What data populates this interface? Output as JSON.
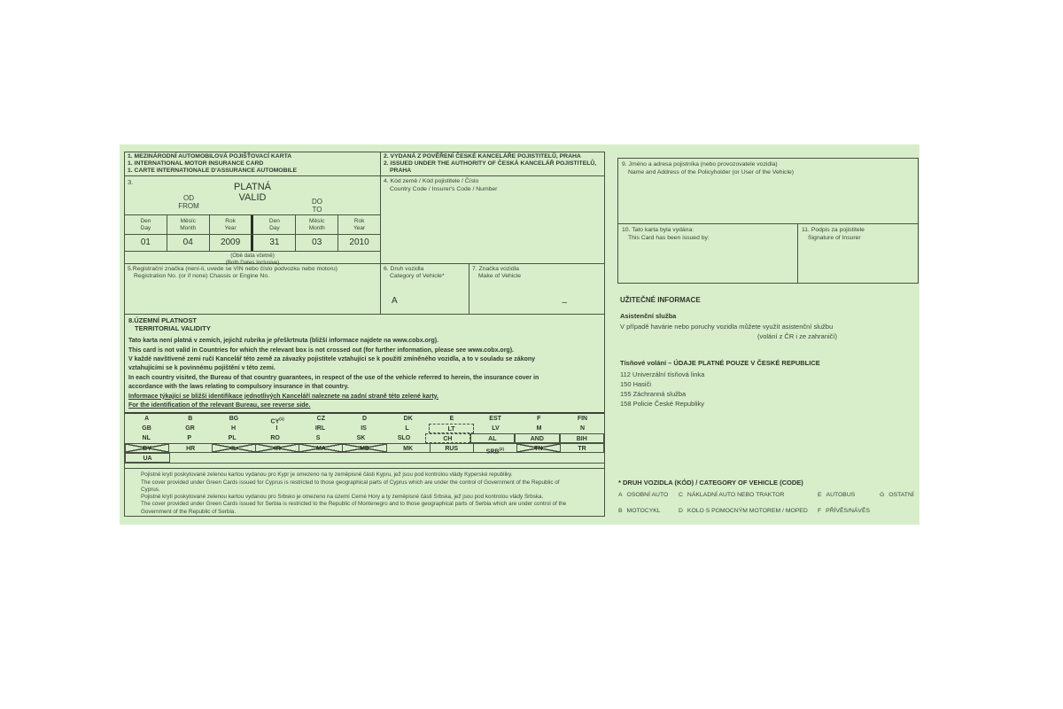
{
  "card": {
    "field1": {
      "lines": [
        "1. MEZINÁRODNÍ AUTOMOBILOVÁ POJIŠŤOVACÍ KARTA",
        "1. INTERNATIONAL MOTOR INSURANCE CARD",
        "1. CARTE INTERNATIONALE D'ASSURANCE AUTOMOBILE"
      ]
    },
    "field2": {
      "lines": [
        "2. VYDANÁ Z POVĚŘENÍ ČESKÉ KANCELÁŘE POJISTITELŮ, PRAHA",
        "2. ISSUED UNDER THE AUTHORITY OF ČESKÁ KANCELÁŘ POJISTITELŮ,",
        "PRAHA"
      ]
    },
    "validity": {
      "number": "3.",
      "title_cs": "PLATNÁ",
      "title_en": "VALID",
      "from_cs": "OD",
      "from_en": "FROM",
      "to_cs": "DO",
      "to_en": "TO",
      "col_headers": [
        {
          "cs": "Den",
          "en": "Day"
        },
        {
          "cs": "Měsíc",
          "en": "Month"
        },
        {
          "cs": "Rok",
          "en": "Year"
        },
        {
          "cs": "Den",
          "en": "Day"
        },
        {
          "cs": "Měsíc",
          "en": "Month"
        },
        {
          "cs": "Rok",
          "en": "Year"
        }
      ],
      "values": [
        "01",
        "04",
        "2009",
        "31",
        "03",
        "2010"
      ],
      "note_cs": "(Obě data včetně)",
      "note_en": "(Both Dates Inclusive)"
    },
    "field4": {
      "label_cs": "4. Kód země / Kód pojistitele / Číslo",
      "label_en": "Country Code / Insurer's Code / Number",
      "value": ""
    },
    "field5": {
      "label_cs": "5.Registrační značka (není-li, uvede se VIN nebo číslo podvozku nebo motoru)",
      "label_en": "Registration No. (or if none) Chassis or Engine No.",
      "value": ""
    },
    "field6": {
      "label_cs": "6. Druh vozidla",
      "label_en": "Category of Vehicle*",
      "value": "A"
    },
    "field7": {
      "label_cs": "7. Značka vozidla",
      "label_en": "Make of Vehicle",
      "value": "–"
    },
    "section8": {
      "title_cs": "8.ÚZEMNÍ PLATNOST",
      "title_en": "TERRITORIAL VALIDITY",
      "lines": [
        {
          "text": "Tato karta není platná v zemích, jejichž rubrika je přeškrtnuta (bližší informace najdete na www.cobx.org).",
          "underline": false
        },
        {
          "text": "This card is not valid in Countries for which the relevant box is not crossed out (for further information, please see www.cobx.org).",
          "underline": false
        },
        {
          "text": "V každé navštívené zemi ručí Kancelář této země za závazky pojistitele vztahující se k použití zmíněného vozidla, a to v souladu se zákony",
          "underline": false
        },
        {
          "text": "vztahujícími se k povinnému pojištění v této zemi.",
          "underline": false
        },
        {
          "text": "In each country visited, the Bureau of that country guarantees, in respect of the use of the vehicle referred to herein, the insurance cover in",
          "underline": false
        },
        {
          "text": "accordance with the laws relating to compulsory insurance in that country.",
          "underline": false
        },
        {
          "text": "Informace týkající se bližší identifikace jednotlivých Kanceláří naleznete na zadní straně této zelené karty.",
          "underline": true
        },
        {
          "text": "For the identification of the relevant Bureau, see reverse side.",
          "underline": true
        }
      ]
    },
    "countries": {
      "rows": [
        [
          {
            "code": "A"
          },
          {
            "code": "B"
          },
          {
            "code": "BG"
          },
          {
            "code": "CY",
            "sup": "(1)"
          },
          {
            "code": "CZ"
          },
          {
            "code": "D"
          },
          {
            "code": "DK"
          },
          {
            "code": "E"
          },
          {
            "code": "EST"
          },
          {
            "code": "F"
          },
          {
            "code": "FIN"
          }
        ],
        [
          {
            "code": "GB"
          },
          {
            "code": "GR"
          },
          {
            "code": "H"
          },
          {
            "code": "I"
          },
          {
            "code": "IRL"
          },
          {
            "code": "IS"
          },
          {
            "code": "L"
          },
          {
            "code": "LT",
            "border": "dashed"
          },
          {
            "code": "LV"
          },
          {
            "code": "M"
          },
          {
            "code": "N"
          }
        ],
        [
          {
            "code": "NL"
          },
          {
            "code": "P"
          },
          {
            "code": "PL"
          },
          {
            "code": "RO"
          },
          {
            "code": "S"
          },
          {
            "code": "SK"
          },
          {
            "code": "SLO"
          },
          {
            "code": "CH",
            "border": "dashed"
          },
          {
            "code": "AL",
            "border": "solid"
          },
          {
            "code": "AND",
            "border": "solid"
          },
          {
            "code": "BIH",
            "border": "solid"
          }
        ],
        [
          {
            "code": "BY",
            "crossed": true
          },
          {
            "code": "HR"
          },
          {
            "code": "IL",
            "crossed": true
          },
          {
            "code": "IR",
            "crossed": true
          },
          {
            "code": "MA",
            "crossed": true
          },
          {
            "code": "MD",
            "crossed": true
          },
          {
            "code": "MK"
          },
          {
            "code": "RUS"
          },
          {
            "code": "SRB",
            "sup": "(2)"
          },
          {
            "code": "TN",
            "crossed": true
          },
          {
            "code": "TR"
          }
        ],
        [
          {
            "code": "UA",
            "border": "solid"
          },
          {
            "code": ""
          },
          {
            "code": ""
          },
          {
            "code": ""
          },
          {
            "code": ""
          },
          {
            "code": ""
          },
          {
            "code": ""
          },
          {
            "code": ""
          },
          {
            "code": ""
          },
          {
            "code": ""
          },
          {
            "code": ""
          }
        ]
      ]
    },
    "footnotes": {
      "lines": [
        {
          "marker": "(1)",
          "text": "Pojistné krytí poskytované zelenou kartou vydanou pro Kypr je omezeno na ty zeměpisné části Kypru, jež jsou pod kontrolou vlády Kyperské republiky."
        },
        {
          "marker": "",
          "text": "The cover provided under Green Cards issued for Cyprus is restricted to those geographical parts of Cyprus which are under the control of Government of the Republic of"
        },
        {
          "marker": "",
          "text": "Cyprus."
        },
        {
          "marker": "(2)",
          "text": "Pojistné krytí poskytované zelenou kartou vydanou pro Srbsko je omezeno na území Černé Hory a ty zeměpisné části Srbska, jež jsou pod kontrolou vlády Srbska."
        },
        {
          "marker": "",
          "text": "The cover provided under Green Cards issued for Serbia is restricted to the Republic of Montenegro and to those geographical parts of Serbia which are under control of the"
        },
        {
          "marker": "",
          "text": "Government of the Republic of Serbia."
        }
      ]
    }
  },
  "right": {
    "field9": {
      "label_cs": "9. Jméno a adresa pojistníka (nebo provozovatele vozidla)",
      "label_en": "Name and Address of the Policyholder (or User of the Vehicle)",
      "value": ""
    },
    "field10": {
      "label_cs": "10. Tato karta byla vydána:",
      "label_en": "This Card has been issued by:",
      "value": ""
    },
    "field11": {
      "label_cs": "11. Podpis za pojistitele",
      "label_en": "Signature of Insurer",
      "value": ""
    },
    "useful": {
      "title": "UŽITEČNÉ INFORMACE",
      "assist_title": "Asistenční služba",
      "assist_line": "V případě havárie nebo poruchy vozidla můžete využít asistenční službu",
      "assist_note": "(volání z ČR i ze zahraničí)",
      "emergency_title": "Tísňové volání – ÚDAJE PLATNÉ POUZE V ČESKÉ REPUBLICE",
      "phones": [
        "112 Univerzální tísňová linka",
        "150 Hasiči",
        "155 Záchranná služba",
        "158 Policie České Republiky"
      ]
    },
    "vehicle_codes": {
      "title": "* DRUH VOZIDLA (KÓD) / CATEGORY OF VEHICLE (CODE)",
      "rows": [
        [
          {
            "code": "A",
            "label": "OSOBNÍ AUTO"
          },
          {
            "code": "C",
            "label": "NÁKLADNÍ AUTO NEBO TRAKTOR"
          },
          {
            "code": "E",
            "label": "AUTOBUS"
          },
          {
            "code": "G",
            "label": "OSTATNÍ"
          }
        ],
        [
          {
            "code": "B",
            "label": "MOTOCYKL"
          },
          {
            "code": "D",
            "label": "KOLO S POMOCNÝM MOTOREM / MOPED"
          },
          {
            "code": "F",
            "label": "PŘÍVĚS/NÁVĚS"
          }
        ]
      ]
    }
  }
}
